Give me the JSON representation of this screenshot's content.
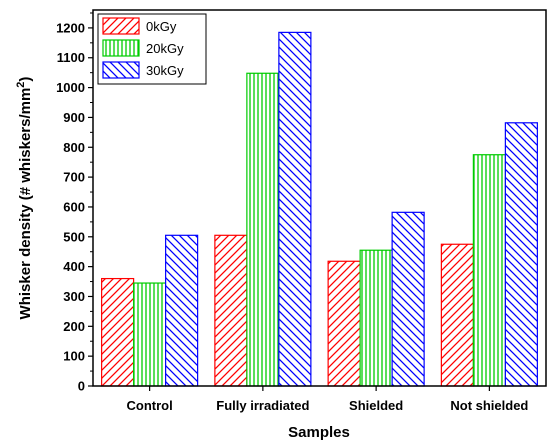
{
  "chart_data": {
    "type": "bar",
    "categories": [
      "Control",
      "Fully irradiated",
      "Shielded",
      "Not shielded"
    ],
    "series": [
      {
        "name": "0kGy",
        "values": [
          360,
          505,
          418,
          475
        ],
        "color": "#ff0000",
        "pattern": "diagonal-forward"
      },
      {
        "name": "20kGy",
        "values": [
          345,
          1048,
          455,
          775
        ],
        "color": "#00cc00",
        "pattern": "vertical"
      },
      {
        "name": "30kGy",
        "values": [
          505,
          1185,
          582,
          882
        ],
        "color": "#0000ff",
        "pattern": "diagonal-back"
      }
    ],
    "xlabel": "Samples",
    "ylabel": "Whisker density (# whiskers/mm",
    "ylabel_superscript": "2",
    "ylabel_suffix": ")",
    "ylim": [
      0,
      1260
    ],
    "yticks": [
      "0",
      "100",
      "200",
      "300",
      "400",
      "500",
      "600",
      "700",
      "800",
      "900",
      "1000",
      "1100",
      "1200"
    ],
    "legend_position": "top-left",
    "grid": false
  }
}
